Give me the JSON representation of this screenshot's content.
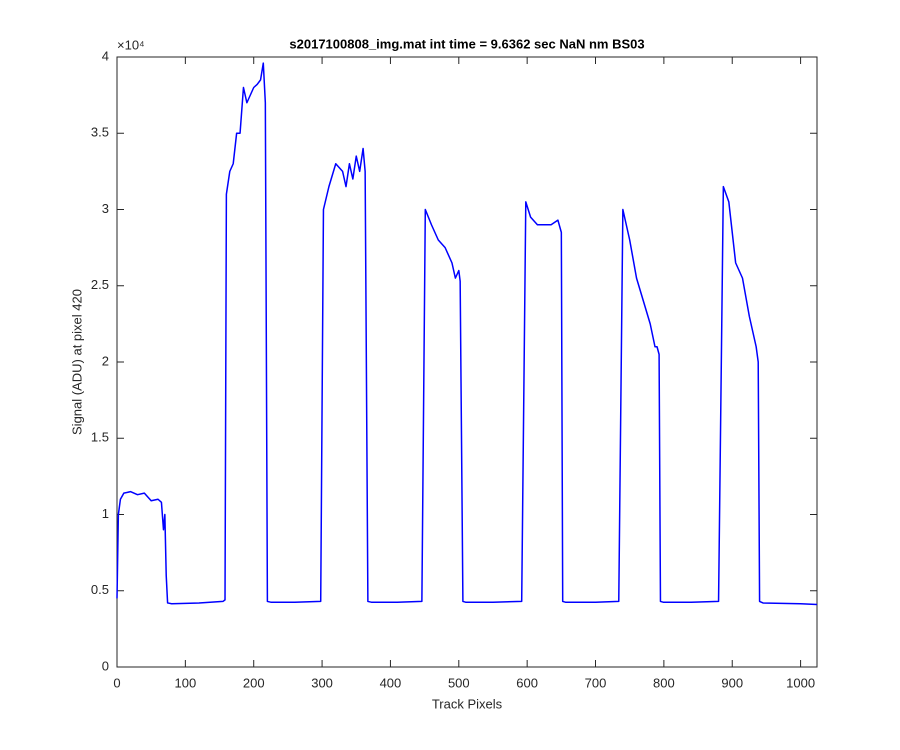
{
  "chart_data": {
    "type": "line",
    "title": "s2017100808_img.mat int time = 9.6362 sec  NaN nm BS03",
    "x_label": "Track Pixels",
    "y_label": "Signal (ADU) at pixel 420",
    "y_multiplier": "×10⁴",
    "xlim": [
      0,
      1024
    ],
    "ylim": [
      0,
      40000
    ],
    "xticks": [
      0,
      100,
      200,
      300,
      400,
      500,
      600,
      700,
      800,
      900,
      1000
    ],
    "yticks": [
      {
        "value": 0,
        "label": "0"
      },
      {
        "value": 5000,
        "label": "0.5"
      },
      {
        "value": 10000,
        "label": "1"
      },
      {
        "value": 15000,
        "label": "1.5"
      },
      {
        "value": 20000,
        "label": "2"
      },
      {
        "value": 25000,
        "label": "2.5"
      },
      {
        "value": 30000,
        "label": "3"
      },
      {
        "value": 35000,
        "label": "3.5"
      },
      {
        "value": 40000,
        "label": "4"
      }
    ],
    "grid": false,
    "series": [
      {
        "color": "#0000ff",
        "x": [
          0,
          2,
          5,
          10,
          20,
          30,
          40,
          50,
          60,
          65,
          68,
          70,
          72,
          74,
          80,
          120,
          155,
          158,
          160,
          165,
          170,
          175,
          180,
          185,
          190,
          195,
          200,
          205,
          210,
          214,
          217,
          220,
          225,
          260,
          298,
          302,
          310,
          320,
          330,
          335,
          340,
          345,
          350,
          355,
          360,
          363,
          367,
          372,
          410,
          446,
          451,
          460,
          470,
          480,
          490,
          495,
          500,
          502,
          506,
          510,
          550,
          592,
          598,
          605,
          615,
          625,
          635,
          645,
          650,
          652,
          656,
          700,
          734,
          740,
          750,
          760,
          770,
          780,
          787,
          790,
          793,
          795,
          799,
          840,
          880,
          887,
          895,
          905,
          915,
          925,
          930,
          935,
          938,
          940,
          945,
          1000,
          1024
        ],
        "values": [
          4500,
          10000,
          11000,
          11400,
          11500,
          11300,
          11400,
          10900,
          11000,
          10800,
          9000,
          10000,
          6000,
          4200,
          4150,
          4200,
          4300,
          4400,
          31000,
          32500,
          33000,
          35000,
          35000,
          38000,
          37000,
          37500,
          38000,
          38200,
          38500,
          39600,
          37000,
          4300,
          4250,
          4250,
          4300,
          30000,
          31500,
          33000,
          32500,
          31500,
          33000,
          32000,
          33500,
          32500,
          34000,
          32500,
          4300,
          4250,
          4250,
          4300,
          30000,
          29000,
          28000,
          27500,
          26500,
          25500,
          26000,
          25300,
          4300,
          4250,
          4250,
          4300,
          30500,
          29500,
          29000,
          29000,
          29000,
          29300,
          28500,
          4300,
          4250,
          4250,
          4300,
          30000,
          28000,
          25500,
          24000,
          22500,
          21000,
          21000,
          20500,
          4300,
          4250,
          4250,
          4300,
          31500,
          30500,
          26500,
          25500,
          23000,
          22000,
          21000,
          20000,
          4300,
          4200,
          4150,
          4100
        ]
      }
    ]
  }
}
